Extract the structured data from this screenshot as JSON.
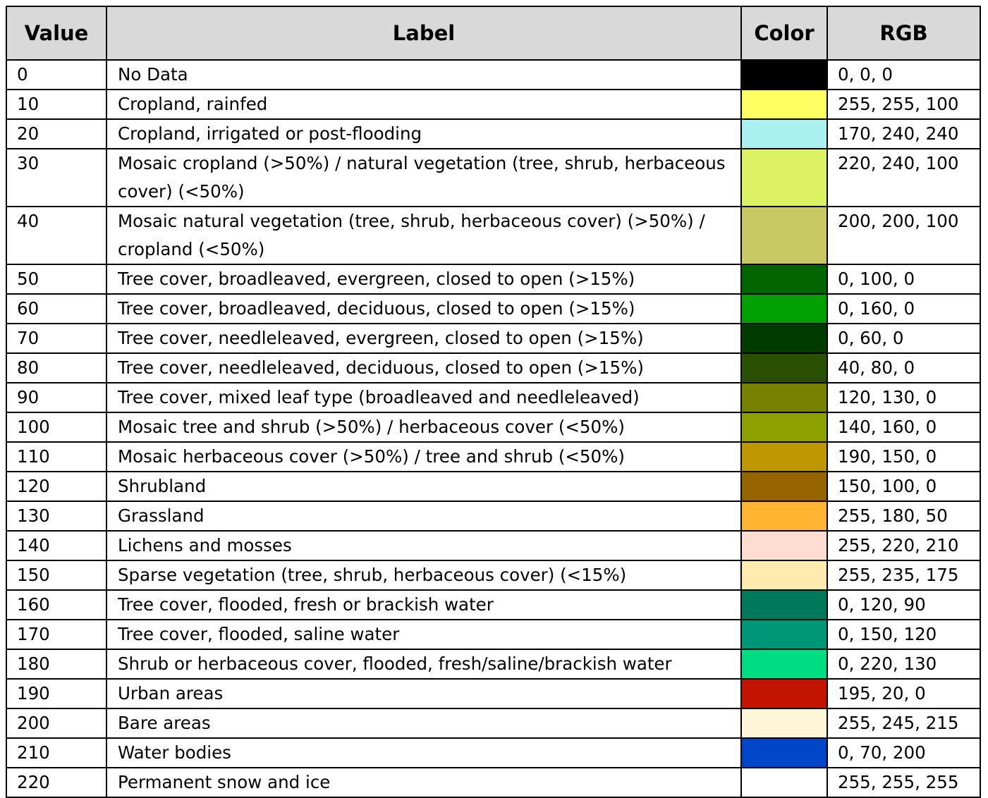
{
  "table": {
    "headers": {
      "value": "Value",
      "label": "Label",
      "color": "Color",
      "rgb": "RGB"
    },
    "rows": [
      {
        "value": "0",
        "label": "No Data",
        "color": "#000000",
        "rgb": "0, 0, 0"
      },
      {
        "value": "10",
        "label": "Cropland, rainfed",
        "color": "#ffff64",
        "rgb": "255, 255, 100"
      },
      {
        "value": "20",
        "label": "Cropland, irrigated or post-flooding",
        "color": "#aaf0f0",
        "rgb": "170, 240, 240"
      },
      {
        "value": "30",
        "label": "Mosaic cropland (>50%) / natural vegetation (tree, shrub, herbaceous cover) (<50%)",
        "color": "#dcf064",
        "rgb": "220, 240, 100"
      },
      {
        "value": "40",
        "label": "Mosaic natural vegetation (tree, shrub, herbaceous cover) (>50%) / cropland (<50%)",
        "color": "#c8c864",
        "rgb": "200, 200, 100"
      },
      {
        "value": "50",
        "label": "Tree cover, broadleaved, evergreen, closed to open (>15%)",
        "color": "#006400",
        "rgb": "0, 100, 0"
      },
      {
        "value": "60",
        "label": "Tree cover, broadleaved, deciduous, closed to open (>15%)",
        "color": "#00a000",
        "rgb": "0, 160, 0"
      },
      {
        "value": "70",
        "label": "Tree cover, needleleaved, evergreen, closed to open (>15%)",
        "color": "#003c00",
        "rgb": "0, 60, 0"
      },
      {
        "value": "80",
        "label": "Tree cover, needleleaved, deciduous, closed to open (>15%)",
        "color": "#285000",
        "rgb": "40, 80, 0"
      },
      {
        "value": "90",
        "label": "Tree cover, mixed leaf type (broadleaved and needleleaved)",
        "color": "#788200",
        "rgb": "120, 130, 0"
      },
      {
        "value": "100",
        "label": "Mosaic tree and shrub (>50%) / herbaceous cover (<50%)",
        "color": "#8ca000",
        "rgb": "140, 160, 0"
      },
      {
        "value": "110",
        "label": "Mosaic herbaceous cover (>50%) / tree and shrub (<50%)",
        "color": "#be9600",
        "rgb": "190, 150, 0"
      },
      {
        "value": "120",
        "label": "Shrubland",
        "color": "#966400",
        "rgb": "150, 100, 0"
      },
      {
        "value": "130",
        "label": "Grassland",
        "color": "#ffb432",
        "rgb": "255, 180, 50"
      },
      {
        "value": "140",
        "label": "Lichens and mosses",
        "color": "#ffdcd2",
        "rgb": "255, 220, 210"
      },
      {
        "value": "150",
        "label": "Sparse vegetation (tree, shrub, herbaceous cover) (<15%)",
        "color": "#ffebaf",
        "rgb": "255, 235, 175"
      },
      {
        "value": "160",
        "label": "Tree cover, flooded, fresh or brackish water",
        "color": "#00785a",
        "rgb": "0, 120, 90"
      },
      {
        "value": "170",
        "label": "Tree cover, flooded, saline water",
        "color": "#009678",
        "rgb": "0, 150, 120"
      },
      {
        "value": "180",
        "label": "Shrub or herbaceous cover, flooded, fresh/saline/brackish water",
        "color": "#00dc82",
        "rgb": "0, 220, 130"
      },
      {
        "value": "190",
        "label": "Urban areas",
        "color": "#c31400",
        "rgb": "195, 20, 0"
      },
      {
        "value": "200",
        "label": "Bare areas",
        "color": "#fff5d7",
        "rgb": "255, 245, 215"
      },
      {
        "value": "210",
        "label": "Water bodies",
        "color": "#0046c8",
        "rgb": "0, 70, 200"
      },
      {
        "value": "220",
        "label": "Permanent snow and ice",
        "color": "#ffffff",
        "rgb": "255, 255, 255"
      }
    ]
  }
}
